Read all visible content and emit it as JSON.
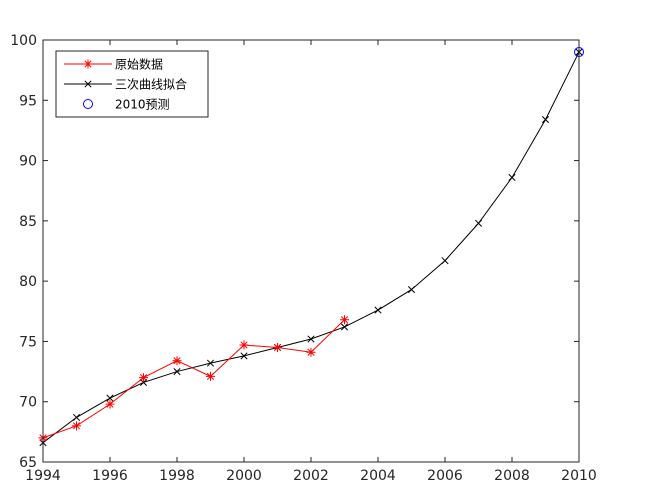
{
  "chart_data": {
    "type": "line",
    "title": "",
    "xlabel": "",
    "ylabel": "",
    "xlim": [
      1994,
      2010
    ],
    "ylim": [
      65,
      100
    ],
    "xticks": [
      1994,
      1996,
      1998,
      2000,
      2002,
      2004,
      2006,
      2008,
      2010
    ],
    "yticks": [
      65,
      70,
      75,
      80,
      85,
      90,
      95,
      100
    ],
    "grid": false,
    "legend_position": "top-left",
    "series": [
      {
        "name": "原始数据",
        "color": "#ff0000",
        "marker": "asterisk",
        "x": [
          1994,
          1995,
          1996,
          1997,
          1998,
          1999,
          2000,
          2001,
          2002,
          2003
        ],
        "y": [
          67.0,
          68.0,
          69.8,
          72.0,
          73.4,
          72.1,
          74.7,
          74.5,
          74.1,
          76.8
        ]
      },
      {
        "name": "三次曲线拟合",
        "color": "#000000",
        "marker": "x",
        "x": [
          1994,
          1995,
          1996,
          1997,
          1998,
          1999,
          2000,
          2001,
          2002,
          2003,
          2004,
          2005,
          2006,
          2007,
          2008,
          2009,
          2010
        ],
        "y": [
          66.6,
          68.7,
          70.3,
          71.6,
          72.5,
          73.2,
          73.8,
          74.5,
          75.2,
          76.2,
          77.6,
          79.3,
          81.7,
          84.8,
          88.6,
          93.4,
          99.0
        ]
      },
      {
        "name": "2010预测",
        "color": "#0000ff",
        "marker": "circle",
        "x": [
          2010
        ],
        "y": [
          99.0
        ]
      }
    ]
  }
}
